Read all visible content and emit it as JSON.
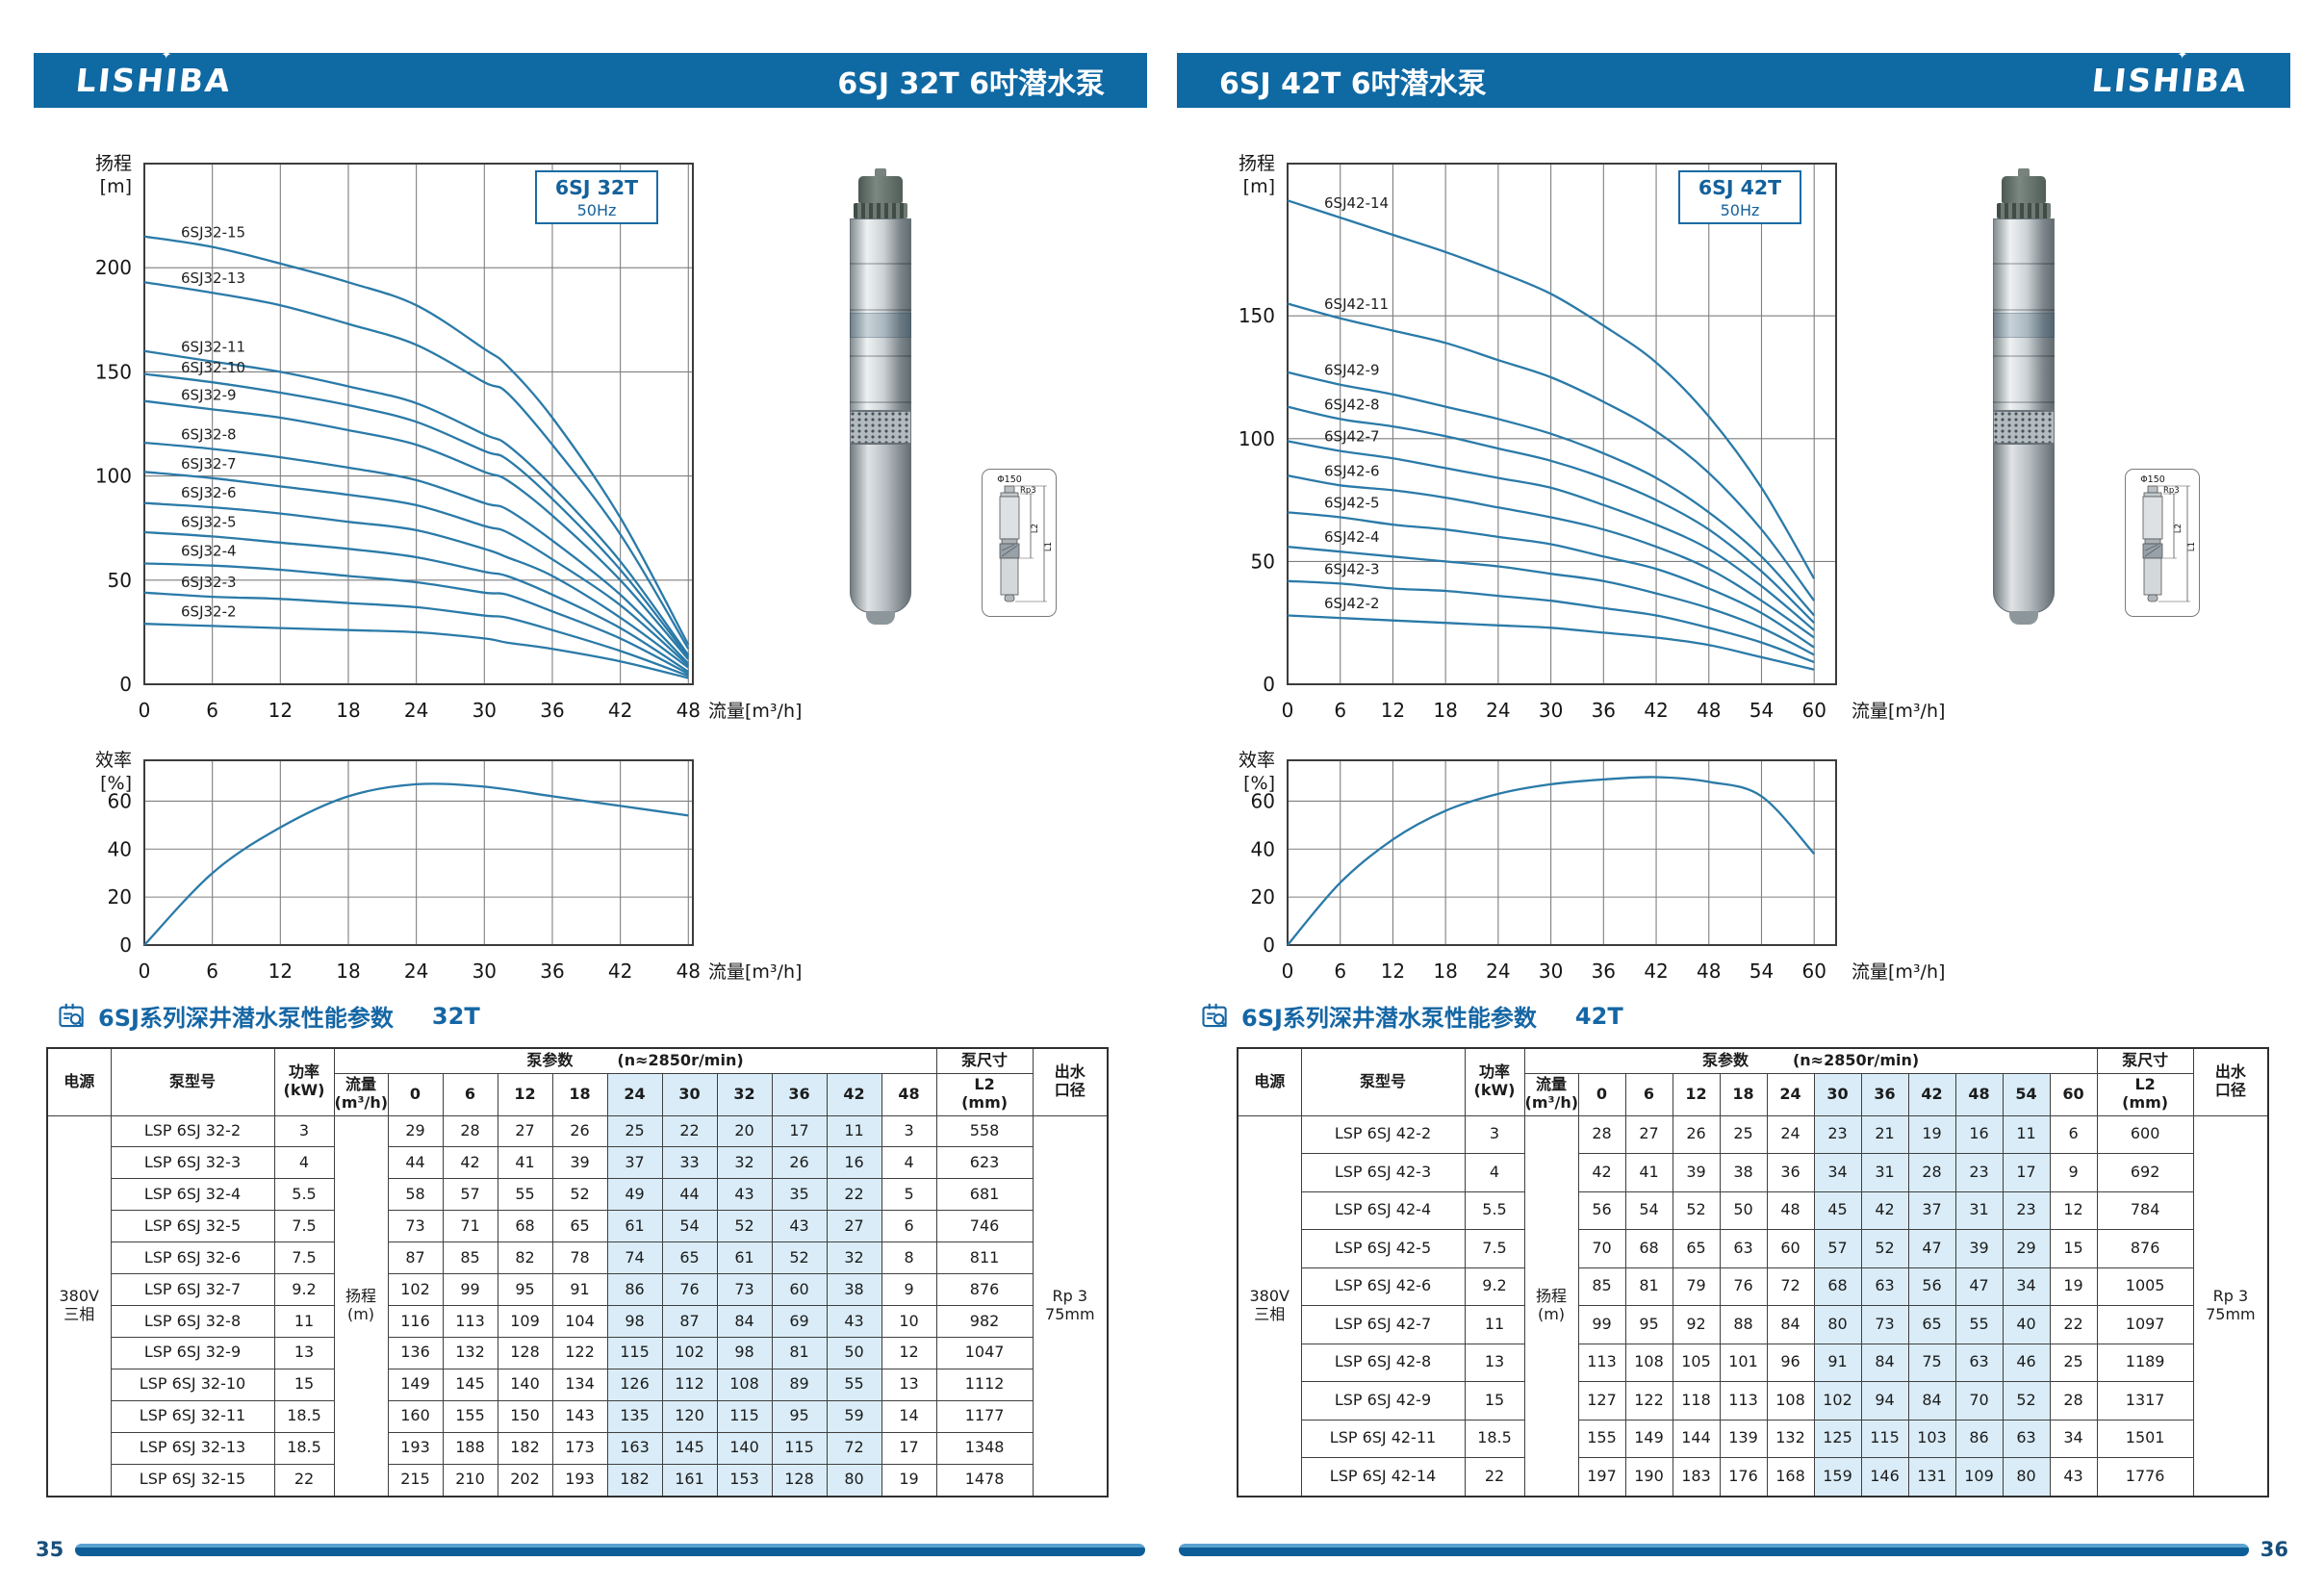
{
  "table_labels": {
    "power_source": "电源",
    "pump_model": "泵型号",
    "power_1": "功率",
    "power_2": "(kW)",
    "flow_1": "流量",
    "flow_2": "(m³/h)",
    "pump_params": "泵参数",
    "speed": "(n≈2850r/min)",
    "pump_dims": "泵尺寸",
    "l2_1": "L2",
    "l2_2": "(mm)",
    "outlet_1": "出水",
    "outlet_2": "口径",
    "head_1": "扬程",
    "head_2": "(m)",
    "supply_1": "380V",
    "supply_2": "三相",
    "outlet_val_1": "Rp 3",
    "outlet_val_2": "75mm"
  },
  "colors": {
    "header_blue": "#0f69a3",
    "curve_blue": "#2a7aa8",
    "accent_blue": "#1566a4",
    "highlight_cell": "#d9ecf7"
  },
  "pages": [
    {
      "page_number": "35",
      "logo": "LISHIBA",
      "title": "6SJ 32T 6吋潜水泵",
      "section_title": "6SJ系列深井潜水泵性能参数",
      "section_code": "32T",
      "dim_diagram": {
        "phi": "Φ150",
        "rp": "Rp3",
        "l2": "L2",
        "l1": "L1"
      },
      "table": {
        "flows": [
          "0",
          "6",
          "12",
          "18",
          "24",
          "30",
          "32",
          "36",
          "42",
          "48"
        ],
        "highlight": [
          "24",
          "30",
          "32",
          "36",
          "42"
        ],
        "rows": [
          {
            "model": "LSP 6SJ 32-2",
            "kw": "3",
            "values": [
              "29",
              "28",
              "27",
              "26",
              "25",
              "22",
              "20",
              "17",
              "11",
              "3"
            ],
            "l2": "558"
          },
          {
            "model": "LSP 6SJ 32-3",
            "kw": "4",
            "values": [
              "44",
              "42",
              "41",
              "39",
              "37",
              "33",
              "32",
              "26",
              "16",
              "4"
            ],
            "l2": "623"
          },
          {
            "model": "LSP 6SJ 32-4",
            "kw": "5.5",
            "values": [
              "58",
              "57",
              "55",
              "52",
              "49",
              "44",
              "43",
              "35",
              "22",
              "5"
            ],
            "l2": "681"
          },
          {
            "model": "LSP 6SJ 32-5",
            "kw": "7.5",
            "values": [
              "73",
              "71",
              "68",
              "65",
              "61",
              "54",
              "52",
              "43",
              "27",
              "6"
            ],
            "l2": "746"
          },
          {
            "model": "LSP 6SJ 32-6",
            "kw": "7.5",
            "values": [
              "87",
              "85",
              "82",
              "78",
              "74",
              "65",
              "61",
              "52",
              "32",
              "8"
            ],
            "l2": "811"
          },
          {
            "model": "LSP 6SJ 32-7",
            "kw": "9.2",
            "values": [
              "102",
              "99",
              "95",
              "91",
              "86",
              "76",
              "73",
              "60",
              "38",
              "9"
            ],
            "l2": "876"
          },
          {
            "model": "LSP 6SJ 32-8",
            "kw": "11",
            "values": [
              "116",
              "113",
              "109",
              "104",
              "98",
              "87",
              "84",
              "69",
              "43",
              "10"
            ],
            "l2": "982"
          },
          {
            "model": "LSP 6SJ 32-9",
            "kw": "13",
            "values": [
              "136",
              "132",
              "128",
              "122",
              "115",
              "102",
              "98",
              "81",
              "50",
              "12"
            ],
            "l2": "1047"
          },
          {
            "model": "LSP 6SJ 32-10",
            "kw": "15",
            "values": [
              "149",
              "145",
              "140",
              "134",
              "126",
              "112",
              "108",
              "89",
              "55",
              "13"
            ],
            "l2": "1112"
          },
          {
            "model": "LSP 6SJ 32-11",
            "kw": "18.5",
            "values": [
              "160",
              "155",
              "150",
              "143",
              "135",
              "120",
              "115",
              "95",
              "59",
              "14"
            ],
            "l2": "1177"
          },
          {
            "model": "LSP 6SJ 32-13",
            "kw": "18.5",
            "values": [
              "193",
              "188",
              "182",
              "173",
              "163",
              "145",
              "140",
              "115",
              "72",
              "17"
            ],
            "l2": "1348"
          },
          {
            "model": "LSP 6SJ 32-15",
            "kw": "22",
            "values": [
              "215",
              "210",
              "202",
              "193",
              "182",
              "161",
              "153",
              "128",
              "80",
              "19"
            ],
            "l2": "1478"
          }
        ]
      }
    },
    {
      "page_number": "36",
      "logo": "LISHIBA",
      "title": "6SJ 42T 6吋潜水泵",
      "section_title": "6SJ系列深井潜水泵性能参数",
      "section_code": "42T",
      "dim_diagram": {
        "phi": "Φ150",
        "rp": "Rp3",
        "l2": "L2",
        "l1": "L1"
      },
      "table": {
        "flows": [
          "0",
          "6",
          "12",
          "18",
          "24",
          "30",
          "36",
          "42",
          "48",
          "54",
          "60"
        ],
        "highlight": [
          "30",
          "36",
          "42",
          "48",
          "54"
        ],
        "rows": [
          {
            "model": "LSP 6SJ 42-2",
            "kw": "3",
            "values": [
              "28",
              "27",
              "26",
              "25",
              "24",
              "23",
              "21",
              "19",
              "16",
              "11",
              "6"
            ],
            "l2": "600"
          },
          {
            "model": "LSP 6SJ 42-3",
            "kw": "4",
            "values": [
              "42",
              "41",
              "39",
              "38",
              "36",
              "34",
              "31",
              "28",
              "23",
              "17",
              "9"
            ],
            "l2": "692"
          },
          {
            "model": "LSP 6SJ 42-4",
            "kw": "5.5",
            "values": [
              "56",
              "54",
              "52",
              "50",
              "48",
              "45",
              "42",
              "37",
              "31",
              "23",
              "12"
            ],
            "l2": "784"
          },
          {
            "model": "LSP 6SJ 42-5",
            "kw": "7.5",
            "values": [
              "70",
              "68",
              "65",
              "63",
              "60",
              "57",
              "52",
              "47",
              "39",
              "29",
              "15"
            ],
            "l2": "876"
          },
          {
            "model": "LSP 6SJ 42-6",
            "kw": "9.2",
            "values": [
              "85",
              "81",
              "79",
              "76",
              "72",
              "68",
              "63",
              "56",
              "47",
              "34",
              "19"
            ],
            "l2": "1005"
          },
          {
            "model": "LSP 6SJ 42-7",
            "kw": "11",
            "values": [
              "99",
              "95",
              "92",
              "88",
              "84",
              "80",
              "73",
              "65",
              "55",
              "40",
              "22"
            ],
            "l2": "1097"
          },
          {
            "model": "LSP 6SJ 42-8",
            "kw": "13",
            "values": [
              "113",
              "108",
              "105",
              "101",
              "96",
              "91",
              "84",
              "75",
              "63",
              "46",
              "25"
            ],
            "l2": "1189"
          },
          {
            "model": "LSP 6SJ 42-9",
            "kw": "15",
            "values": [
              "127",
              "122",
              "118",
              "113",
              "108",
              "102",
              "94",
              "84",
              "70",
              "52",
              "28"
            ],
            "l2": "1317"
          },
          {
            "model": "LSP 6SJ 42-11",
            "kw": "18.5",
            "values": [
              "155",
              "149",
              "144",
              "139",
              "132",
              "125",
              "115",
              "103",
              "86",
              "63",
              "34"
            ],
            "l2": "1501"
          },
          {
            "model": "LSP 6SJ 42-14",
            "kw": "22",
            "values": [
              "197",
              "190",
              "183",
              "176",
              "168",
              "159",
              "146",
              "131",
              "109",
              "80",
              "43"
            ],
            "l2": "1776"
          }
        ]
      }
    }
  ],
  "chart_data": [
    {
      "id": "head-capacity-32T",
      "type": "line",
      "page": 0,
      "kind": "head",
      "title": "6SJ 32T",
      "subtitle": "50Hz",
      "xlabel": "流量[m³/h]",
      "ylabel": [
        "扬程",
        "[m]"
      ],
      "xlim": [
        0,
        48.4
      ],
      "ylim": [
        0,
        250
      ],
      "xticks": [
        0,
        6,
        12,
        18,
        24,
        30,
        36,
        42,
        48
      ],
      "yticks": [
        0,
        50,
        100,
        150,
        200
      ],
      "grid": true,
      "x": [
        0,
        6,
        12,
        18,
        24,
        30,
        32,
        36,
        42,
        48
      ],
      "series": [
        {
          "name": "6SJ32-15",
          "values": [
            215,
            210,
            202,
            193,
            182,
            161,
            153,
            128,
            80,
            19
          ]
        },
        {
          "name": "6SJ32-13",
          "values": [
            193,
            188,
            182,
            173,
            163,
            145,
            140,
            115,
            72,
            17
          ]
        },
        {
          "name": "6SJ32-11",
          "values": [
            160,
            155,
            150,
            143,
            135,
            120,
            115,
            95,
            59,
            14
          ]
        },
        {
          "name": "6SJ32-10",
          "values": [
            149,
            145,
            140,
            134,
            126,
            112,
            108,
            89,
            55,
            13
          ]
        },
        {
          "name": "6SJ32-9",
          "values": [
            136,
            132,
            128,
            122,
            115,
            102,
            98,
            81,
            50,
            12
          ]
        },
        {
          "name": "6SJ32-8",
          "values": [
            116,
            113,
            109,
            104,
            98,
            87,
            84,
            69,
            43,
            10
          ]
        },
        {
          "name": "6SJ32-7",
          "values": [
            102,
            99,
            95,
            91,
            86,
            76,
            73,
            60,
            38,
            9
          ]
        },
        {
          "name": "6SJ32-6",
          "values": [
            87,
            85,
            82,
            78,
            74,
            65,
            61,
            52,
            32,
            8
          ]
        },
        {
          "name": "6SJ32-5",
          "values": [
            73,
            71,
            68,
            65,
            61,
            54,
            52,
            43,
            27,
            6
          ]
        },
        {
          "name": "6SJ32-4",
          "values": [
            58,
            57,
            55,
            52,
            49,
            44,
            43,
            35,
            22,
            5
          ]
        },
        {
          "name": "6SJ32-3",
          "values": [
            44,
            42,
            41,
            39,
            37,
            33,
            32,
            26,
            16,
            4
          ]
        },
        {
          "name": "6SJ32-2",
          "values": [
            29,
            28,
            27,
            26,
            25,
            22,
            20,
            17,
            11,
            3
          ]
        }
      ]
    },
    {
      "id": "efficiency-32T",
      "type": "line",
      "page": 0,
      "kind": "eff",
      "xlabel": "流量[m³/h]",
      "ylabel": [
        "效率",
        "[%]"
      ],
      "xlim": [
        0,
        48.4
      ],
      "ylim": [
        0,
        77
      ],
      "xticks": [
        0,
        6,
        12,
        18,
        24,
        30,
        36,
        42,
        48
      ],
      "yticks": [
        0,
        20,
        40,
        60
      ],
      "grid": true,
      "x": [
        0,
        6,
        12,
        18,
        24,
        30,
        36,
        42,
        48
      ],
      "series": [
        {
          "name": "效率",
          "show_label": false,
          "values": [
            0,
            30,
            49,
            62,
            67,
            66,
            62,
            58,
            54
          ]
        }
      ]
    },
    {
      "id": "head-capacity-42T",
      "type": "line",
      "page": 1,
      "kind": "head",
      "title": "6SJ 42T",
      "subtitle": "50Hz",
      "xlabel": "流量[m³/h]",
      "ylabel": [
        "扬程",
        "[m]"
      ],
      "xlim": [
        0,
        62.5
      ],
      "ylim": [
        0,
        212
      ],
      "xticks": [
        0,
        6,
        12,
        18,
        24,
        30,
        36,
        42,
        48,
        54,
        60
      ],
      "yticks": [
        0,
        50,
        100,
        150
      ],
      "grid": true,
      "x": [
        0,
        6,
        12,
        18,
        24,
        30,
        36,
        42,
        48,
        54,
        60
      ],
      "series": [
        {
          "name": "6SJ42-14",
          "values": [
            197,
            190,
            183,
            176,
            168,
            159,
            146,
            131,
            109,
            80,
            43
          ]
        },
        {
          "name": "6SJ42-11",
          "values": [
            155,
            149,
            144,
            139,
            132,
            125,
            115,
            103,
            86,
            63,
            34
          ]
        },
        {
          "name": "6SJ42-9",
          "values": [
            127,
            122,
            118,
            113,
            108,
            102,
            94,
            84,
            70,
            52,
            28
          ]
        },
        {
          "name": "6SJ42-8",
          "values": [
            113,
            108,
            105,
            101,
            96,
            91,
            84,
            75,
            63,
            46,
            25
          ]
        },
        {
          "name": "6SJ42-7",
          "values": [
            99,
            95,
            92,
            88,
            84,
            80,
            73,
            65,
            55,
            40,
            22
          ]
        },
        {
          "name": "6SJ42-6",
          "values": [
            85,
            81,
            79,
            76,
            72,
            68,
            63,
            56,
            47,
            34,
            19
          ]
        },
        {
          "name": "6SJ42-5",
          "values": [
            70,
            68,
            65,
            63,
            60,
            57,
            52,
            47,
            39,
            29,
            15
          ]
        },
        {
          "name": "6SJ42-4",
          "values": [
            56,
            54,
            52,
            50,
            48,
            45,
            42,
            37,
            31,
            23,
            12
          ]
        },
        {
          "name": "6SJ42-3",
          "values": [
            42,
            41,
            39,
            38,
            36,
            34,
            31,
            28,
            23,
            17,
            9
          ]
        },
        {
          "name": "6SJ42-2",
          "values": [
            28,
            27,
            26,
            25,
            24,
            23,
            21,
            19,
            16,
            11,
            6
          ]
        }
      ]
    },
    {
      "id": "efficiency-42T",
      "type": "line",
      "page": 1,
      "kind": "eff",
      "xlabel": "流量[m³/h]",
      "ylabel": [
        "效率",
        "[%]"
      ],
      "xlim": [
        0,
        62.5
      ],
      "ylim": [
        0,
        77
      ],
      "xticks": [
        0,
        6,
        12,
        18,
        24,
        30,
        36,
        42,
        48,
        54,
        60
      ],
      "yticks": [
        0,
        20,
        40,
        60
      ],
      "grid": true,
      "x": [
        0,
        6,
        12,
        18,
        24,
        30,
        36,
        42,
        48,
        54,
        60
      ],
      "series": [
        {
          "name": "效率",
          "show_label": false,
          "values": [
            0,
            26,
            44,
            56,
            63,
            67,
            69,
            70,
            68,
            62,
            38
          ]
        }
      ]
    }
  ]
}
